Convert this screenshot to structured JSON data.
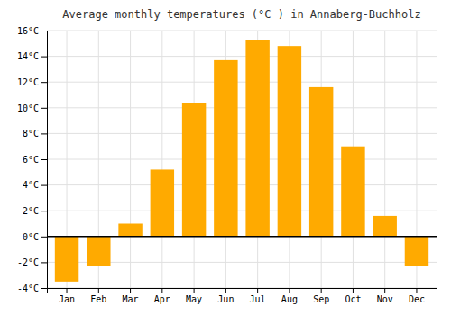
{
  "chart_data": {
    "type": "bar",
    "title": "Average monthly temperatures (°C ) in Annaberg-Buchholz",
    "categories": [
      "Jan",
      "Feb",
      "Mar",
      "Apr",
      "May",
      "Jun",
      "Jul",
      "Aug",
      "Sep",
      "Oct",
      "Nov",
      "Dec"
    ],
    "values": [
      -3.5,
      -2.3,
      1.0,
      5.2,
      10.4,
      13.7,
      15.3,
      14.8,
      11.6,
      7.0,
      1.6,
      -2.3
    ],
    "color": "#FFAA00",
    "ylim": [
      -4,
      16
    ],
    "yticks": [
      {
        "value": -4,
        "label": "-4°C"
      },
      {
        "value": -2,
        "label": "-2°C"
      },
      {
        "value": 0,
        "label": "0°C"
      },
      {
        "value": 2,
        "label": "2°C"
      },
      {
        "value": 4,
        "label": "4°C"
      },
      {
        "value": 6,
        "label": "6°C"
      },
      {
        "value": 8,
        "label": "8°C"
      },
      {
        "value": 10,
        "label": "10°C"
      },
      {
        "value": 12,
        "label": "12°C"
      },
      {
        "value": 14,
        "label": "14°C"
      },
      {
        "value": 16,
        "label": "16°C"
      }
    ],
    "grid": true
  }
}
